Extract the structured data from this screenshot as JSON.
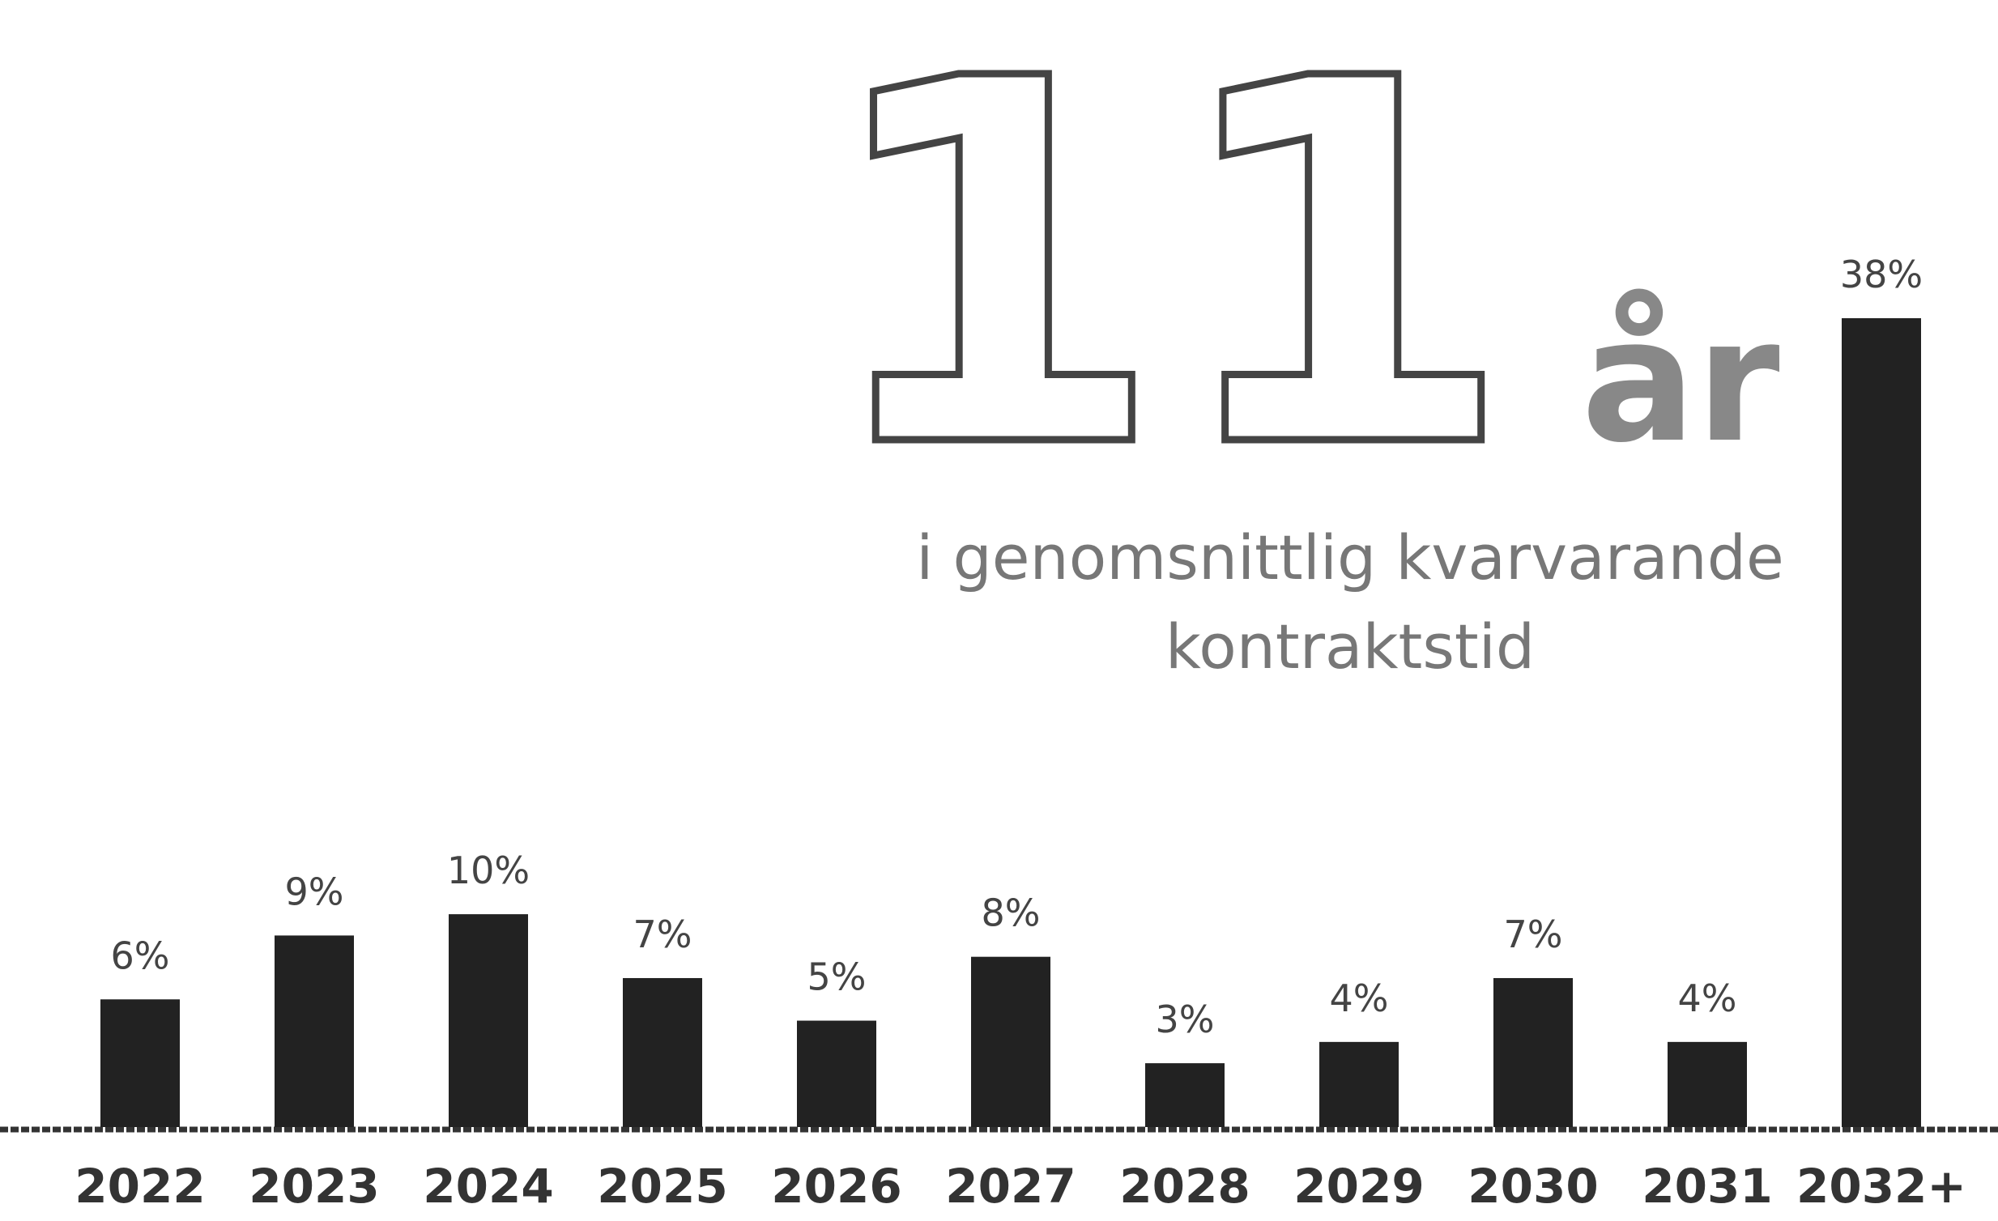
{
  "chart_data": {
    "type": "bar",
    "annotations": [
      "11",
      "år",
      "i genomsnittlig kvarvarande",
      "kontraktstid"
    ],
    "categories": [
      "2022",
      "2023",
      "2024",
      "2025",
      "2026",
      "2027",
      "2028",
      "2029",
      "2030",
      "2031",
      "2032+"
    ],
    "values": [
      6,
      9,
      10,
      7,
      5,
      8,
      3,
      4,
      7,
      4,
      38
    ],
    "value_labels": [
      "6%",
      "9%",
      "10%",
      "7%",
      "5%",
      "8%",
      "3%",
      "4%",
      "7%",
      "4%",
      "38%"
    ],
    "color": "#222222"
  }
}
